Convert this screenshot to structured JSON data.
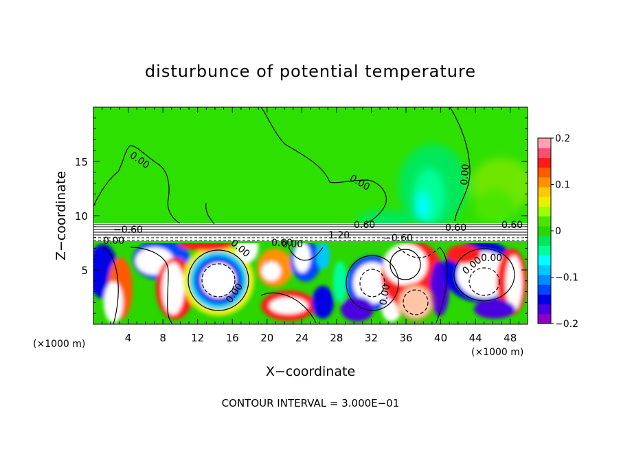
{
  "chart_data": {
    "type": "heatmap",
    "title": "disturbunce of potential temperature",
    "xlabel": "X−coordinate",
    "ylabel": "Z−coordinate",
    "x_unit_left": "(×1000 m)",
    "x_unit_right": "(×1000 m)",
    "footer": "CONTOUR INTERVAL = 3.000E−01",
    "xlim": [
      0,
      50
    ],
    "ylim": [
      0,
      20
    ],
    "x_ticks": [
      4,
      8,
      12,
      16,
      20,
      24,
      28,
      32,
      36,
      40,
      44,
      48
    ],
    "y_ticks": [
      5,
      10,
      15
    ],
    "colorbar": {
      "range": [
        -0.2,
        0.2
      ],
      "tick_values": [
        0.2,
        0.1,
        0,
        -0.1,
        -0.2
      ],
      "tick_labels": [
        "0.2",
        "0.1",
        "0",
        "−0.1",
        "−0.2"
      ],
      "colors": [
        "#8e00c8",
        "#4b00e0",
        "#0000e6",
        "#0046ff",
        "#008cff",
        "#00c8ff",
        "#00ffff",
        "#00ff9a",
        "#00e85a",
        "#2ad700",
        "#4be600",
        "#9dff00",
        "#e6f000",
        "#ffc800",
        "#ff9000",
        "#ff5a00",
        "#ff1a1a",
        "#f5506e",
        "#ffa0b4"
      ]
    },
    "contour_labels": [
      "0.00",
      "0.00",
      "0.00",
      "0.00",
      "0.00",
      "−0.60",
      "0.60",
      "0.60",
      "−0.60",
      "1.20",
      "0.60",
      "0.60",
      "0.00",
      "0.00",
      "0.00",
      "0.00",
      "0.00"
    ]
  }
}
